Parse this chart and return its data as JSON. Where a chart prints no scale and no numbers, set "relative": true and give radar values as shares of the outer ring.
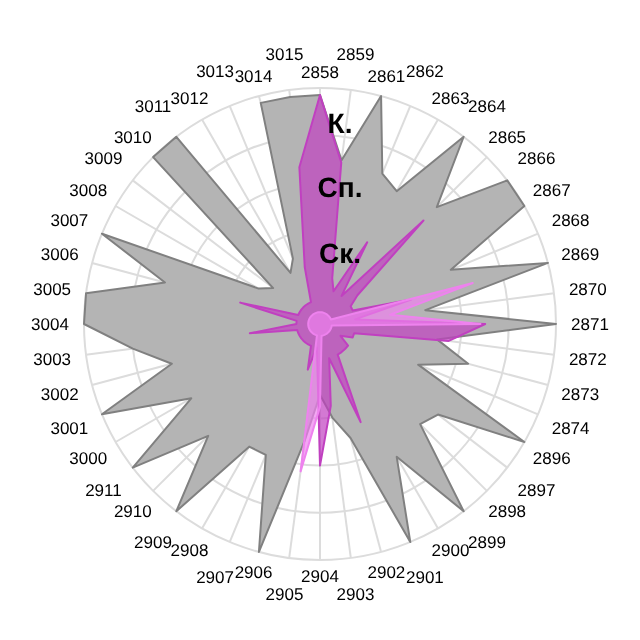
{
  "chart_data": {
    "type": "radar",
    "relative": true,
    "grid": true,
    "categories": [
      "2858",
      "2859",
      "2861",
      "2862",
      "2863",
      "2864",
      "2865",
      "2866",
      "2867",
      "2868",
      "2869",
      "2870",
      "2871",
      "2872",
      "2873",
      "2874",
      "2896",
      "2897",
      "2898",
      "2899",
      "2900",
      "2901",
      "2902",
      "2903",
      "2904",
      "2905",
      "2906",
      "2907",
      "2908",
      "2909",
      "2910",
      "2911",
      "3000",
      "3001",
      "3002",
      "3003",
      "3004",
      "3005",
      "3006",
      "3007",
      "3008",
      "3009",
      "3010",
      "3011",
      "3012",
      "3013",
      "3014",
      "3015"
    ],
    "series": [
      {
        "color": "#b4b4b4",
        "values": [
          0.97,
          0.7,
          1,
          0.69,
          0.65,
          1,
          0.7,
          1,
          1,
          0.6,
          1,
          0.45,
          1,
          0.5,
          0.65,
          0.45,
          1,
          0.63,
          0.6,
          1,
          0.65,
          1,
          0.5,
          0.4,
          0.3,
          0.5,
          1,
          0.6,
          0.6,
          1,
          0.67,
          1,
          0.63,
          1,
          0.65,
          0.8,
          1,
          1,
          0.68,
          1,
          0.3,
          0.25,
          1,
          1,
          0.25,
          0.3,
          0.97,
          0.97
        ]
      },
      {
        "color": "#c040c0",
        "values": [
          0.97,
          0.69,
          0.2,
          0.15,
          0.4,
          0.15,
          0.62,
          0.2,
          0.15,
          0.15,
          0.4,
          0.15,
          0.7,
          0.55,
          0.15,
          0.15,
          0.1,
          0.15,
          0.15,
          0.15,
          0.15,
          0.45,
          0.15,
          0.35,
          0.6,
          0.1,
          0.2,
          0.1,
          0.1,
          0.1,
          0.1,
          0.1,
          0.1,
          0.1,
          0.1,
          0.3,
          0.1,
          0.1,
          0.35,
          0.1,
          0.1,
          0.1,
          0.1,
          0.1,
          0.1,
          0.1,
          0.25,
          0.67
        ]
      },
      {
        "color": "#ee82ee",
        "values": [
          0.05,
          0.05,
          0.05,
          0.05,
          0.05,
          0.05,
          0.05,
          0.05,
          0.05,
          0.05,
          0.67,
          0.3,
          0.68,
          0.05,
          0.05,
          0.05,
          0.05,
          0.05,
          0.05,
          0.05,
          0.05,
          0.05,
          0.05,
          0.05,
          0.35,
          0.63,
          0.05,
          0.05,
          0.05,
          0.05,
          0.05,
          0.05,
          0.05,
          0.05,
          0.05,
          0.05,
          0.05,
          0.05,
          0.05,
          0.05,
          0.05,
          0.05,
          0.05,
          0.05,
          0.05,
          0.05,
          0.05,
          0.05
        ]
      }
    ],
    "annotations": [
      "К.",
      "Сп.",
      "Ск."
    ]
  }
}
